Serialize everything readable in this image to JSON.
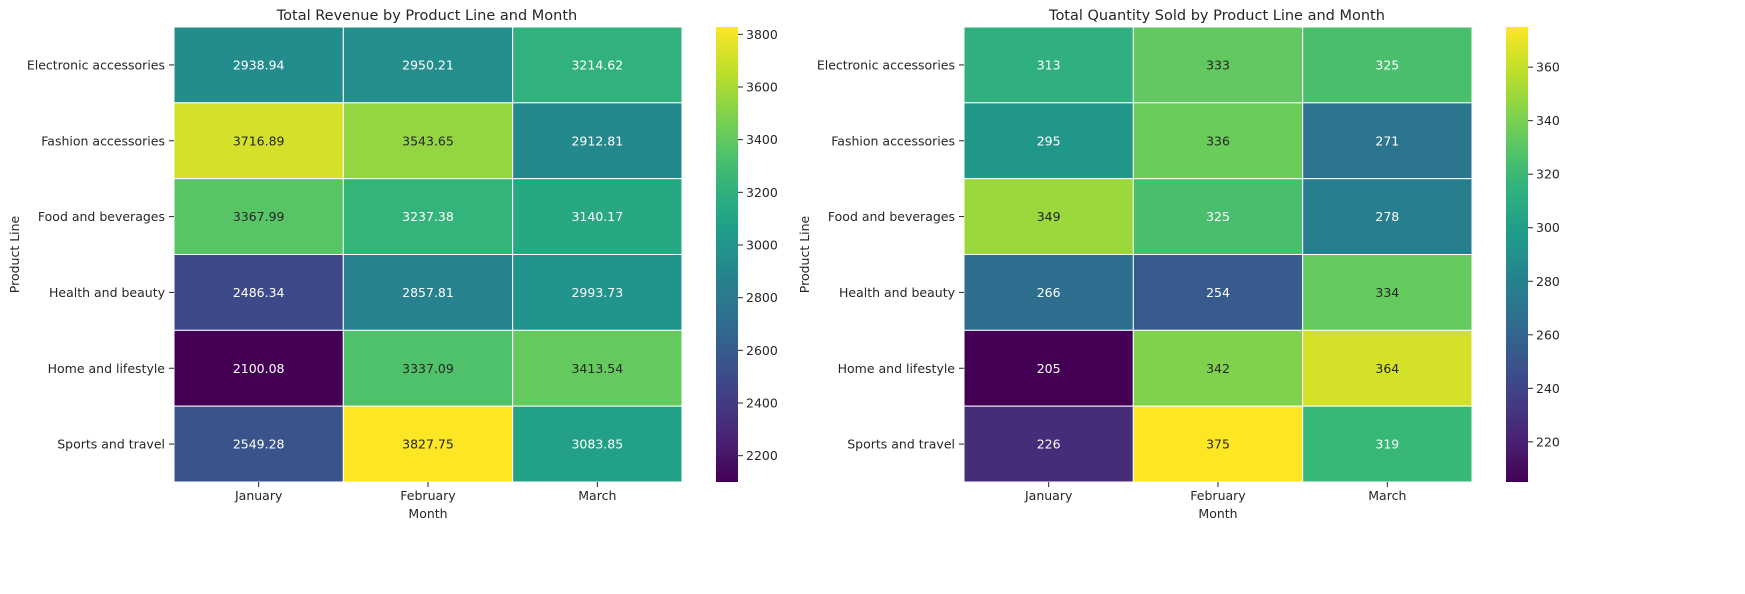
{
  "chart_data": [
    {
      "type": "heatmap",
      "title": "Total Revenue by Product Line and Month",
      "xlabel": "Month",
      "ylabel": "Product Line",
      "x_categories": [
        "January",
        "February",
        "March"
      ],
      "y_categories": [
        "Electronic accessories",
        "Fashion accessories",
        "Food and beverages",
        "Health and beauty",
        "Home and lifestyle",
        "Sports and travel"
      ],
      "values": [
        [
          2938.94,
          2950.21,
          3214.62
        ],
        [
          3716.89,
          3543.65,
          2912.81
        ],
        [
          3367.99,
          3237.38,
          3140.17
        ],
        [
          2486.34,
          2857.81,
          2993.73
        ],
        [
          2100.08,
          3337.09,
          3413.54
        ],
        [
          2549.28,
          3827.75,
          3083.85
        ]
      ],
      "value_labels": [
        [
          "2938.94",
          "2950.21",
          "3214.62"
        ],
        [
          "3716.89",
          "3543.65",
          "2912.81"
        ],
        [
          "3367.99",
          "3237.38",
          "3140.17"
        ],
        [
          "2486.34",
          "2857.81",
          "2993.73"
        ],
        [
          "2100.08",
          "3337.09",
          "3413.54"
        ],
        [
          "2549.28",
          "3827.75",
          "3083.85"
        ]
      ],
      "colormap": "viridis",
      "colorbar_range": [
        2100.08,
        3827.75
      ],
      "colorbar_ticks": [
        2200,
        2400,
        2600,
        2800,
        3000,
        3200,
        3400,
        3600,
        3800
      ],
      "colorbar_tick_labels": [
        "2200",
        "2400",
        "2600",
        "2800",
        "3000",
        "3200",
        "3400",
        "3600",
        "3800"
      ]
    },
    {
      "type": "heatmap",
      "title": "Total Quantity Sold by Product Line and Month",
      "xlabel": "Month",
      "ylabel": "Product Line",
      "x_categories": [
        "January",
        "February",
        "March"
      ],
      "y_categories": [
        "Electronic accessories",
        "Fashion accessories",
        "Food and beverages",
        "Health and beauty",
        "Home and lifestyle",
        "Sports and travel"
      ],
      "values": [
        [
          313,
          333,
          325
        ],
        [
          295,
          336,
          271
        ],
        [
          349,
          325,
          278
        ],
        [
          266,
          254,
          334
        ],
        [
          205,
          342,
          364
        ],
        [
          226,
          375,
          319
        ]
      ],
      "value_labels": [
        [
          "313",
          "333",
          "325"
        ],
        [
          "295",
          "336",
          "271"
        ],
        [
          "349",
          "325",
          "278"
        ],
        [
          "266",
          "254",
          "334"
        ],
        [
          "205",
          "342",
          "364"
        ],
        [
          "226",
          "375",
          "319"
        ]
      ],
      "colormap": "viridis",
      "colorbar_range": [
        205,
        375
      ],
      "colorbar_ticks": [
        220,
        240,
        260,
        280,
        300,
        320,
        340,
        360
      ],
      "colorbar_tick_labels": [
        "220",
        "240",
        "260",
        "280",
        "300",
        "320",
        "340",
        "360"
      ]
    }
  ]
}
